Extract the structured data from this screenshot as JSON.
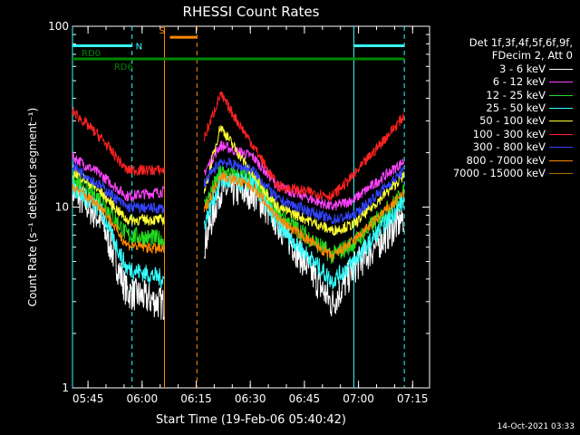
{
  "chart_data": {
    "type": "line",
    "title": "RHESSI Count Rates",
    "xlabel": "Start Time (19-Feb-06 05:40:42)",
    "ylabel": "Count Rate (s⁻¹ detector segment⁻¹)",
    "y_scale": "log",
    "ylim": [
      1,
      100
    ],
    "y_ticks": [
      "1",
      "10",
      "100"
    ],
    "x_ticks": [
      "05:45",
      "06:00",
      "06:15",
      "06:30",
      "06:45",
      "07:00",
      "07:15"
    ],
    "xlim_minutes": [
      0,
      99
    ],
    "legend_header": [
      "Det 1f,3f,4f,5f,6f,9f,",
      "FDecim 2, Att 0"
    ],
    "series": [
      {
        "name": "3 - 6 keV",
        "color": "#ffffff",
        "levels": [
          12.5,
          8.4,
          3.4,
          2.9,
          6.2,
          12.5,
          12.0,
          8.2,
          2.9,
          4.6,
          8.8
        ]
      },
      {
        "name": "6 - 12 keV",
        "color": "#ff44ff",
        "levels": [
          19,
          15,
          11.5,
          12.2,
          15.5,
          22,
          19,
          13,
          10,
          11,
          18
        ]
      },
      {
        "name": "12 - 25 keV",
        "color": "#22dd22",
        "levels": [
          14,
          11,
          7.0,
          6.6,
          10,
          15.5,
          14.5,
          9.2,
          5.4,
          6.3,
          12
        ]
      },
      {
        "name": "25 - 50 keV",
        "color": "#33ffff",
        "levels": [
          13,
          9.5,
          4.6,
          4.0,
          8.0,
          14,
          13.5,
          8.0,
          3.9,
          5.0,
          11
        ]
      },
      {
        "name": "50 - 100 keV",
        "color": "#ffff33",
        "levels": [
          16,
          12,
          8.5,
          8.5,
          12,
          28,
          15,
          10,
          7.4,
          8.0,
          15
        ]
      },
      {
        "name": "100 - 300 keV",
        "color": "#ff2222",
        "levels": [
          34,
          24,
          16,
          16,
          24,
          42,
          22,
          13,
          11.5,
          15,
          32
        ]
      },
      {
        "name": "300 - 800 keV",
        "color": "#3344ff",
        "levels": [
          17,
          13,
          10,
          9.8,
          13.5,
          18,
          16,
          11,
          8.5,
          9,
          16
        ]
      },
      {
        "name": "800 - 7000 keV",
        "color": "#ff8800",
        "levels": [
          13,
          10,
          6.2,
          5.8,
          9.5,
          15,
          13,
          8.6,
          5.3,
          6.5,
          12
        ]
      },
      {
        "name": "7000 - 15000 keV",
        "color": "#b06a00",
        "levels": []
      }
    ],
    "markers": [
      {
        "label": "N",
        "color": "#33ffff",
        "minute": 0,
        "minute_end": 16.5,
        "level": 78
      },
      {
        "label": "S",
        "color": "#ff8800",
        "minute": 27,
        "minute_end": 34.5,
        "level": 87
      },
      {
        "label": "",
        "color": "#33ffff",
        "minute": 78,
        "minute_end": 92,
        "level": 78
      },
      {
        "label": "RD0",
        "color": "#008800",
        "minute": 0,
        "minute_end": 9,
        "level": 66
      },
      {
        "label": "RD6",
        "color": "#008800",
        "minute": 9,
        "minute_end": 92,
        "level": 66
      }
    ],
    "vlines": [
      {
        "minute": 0,
        "color": "#33ffff",
        "dashed": false
      },
      {
        "minute": 16.5,
        "color": "#33ffff",
        "dashed": true
      },
      {
        "minute": 25.5,
        "color": "#ff8800",
        "dashed": false
      },
      {
        "minute": 34.5,
        "color": "#ff8800",
        "dashed": true
      },
      {
        "minute": 78,
        "color": "#33ffff",
        "dashed": false
      },
      {
        "minute": 92,
        "color": "#33ffff",
        "dashed": true
      }
    ],
    "grid": false,
    "legend_position": "right"
  },
  "footer": {
    "timestamp": "14-Oct-2021 03:33"
  }
}
